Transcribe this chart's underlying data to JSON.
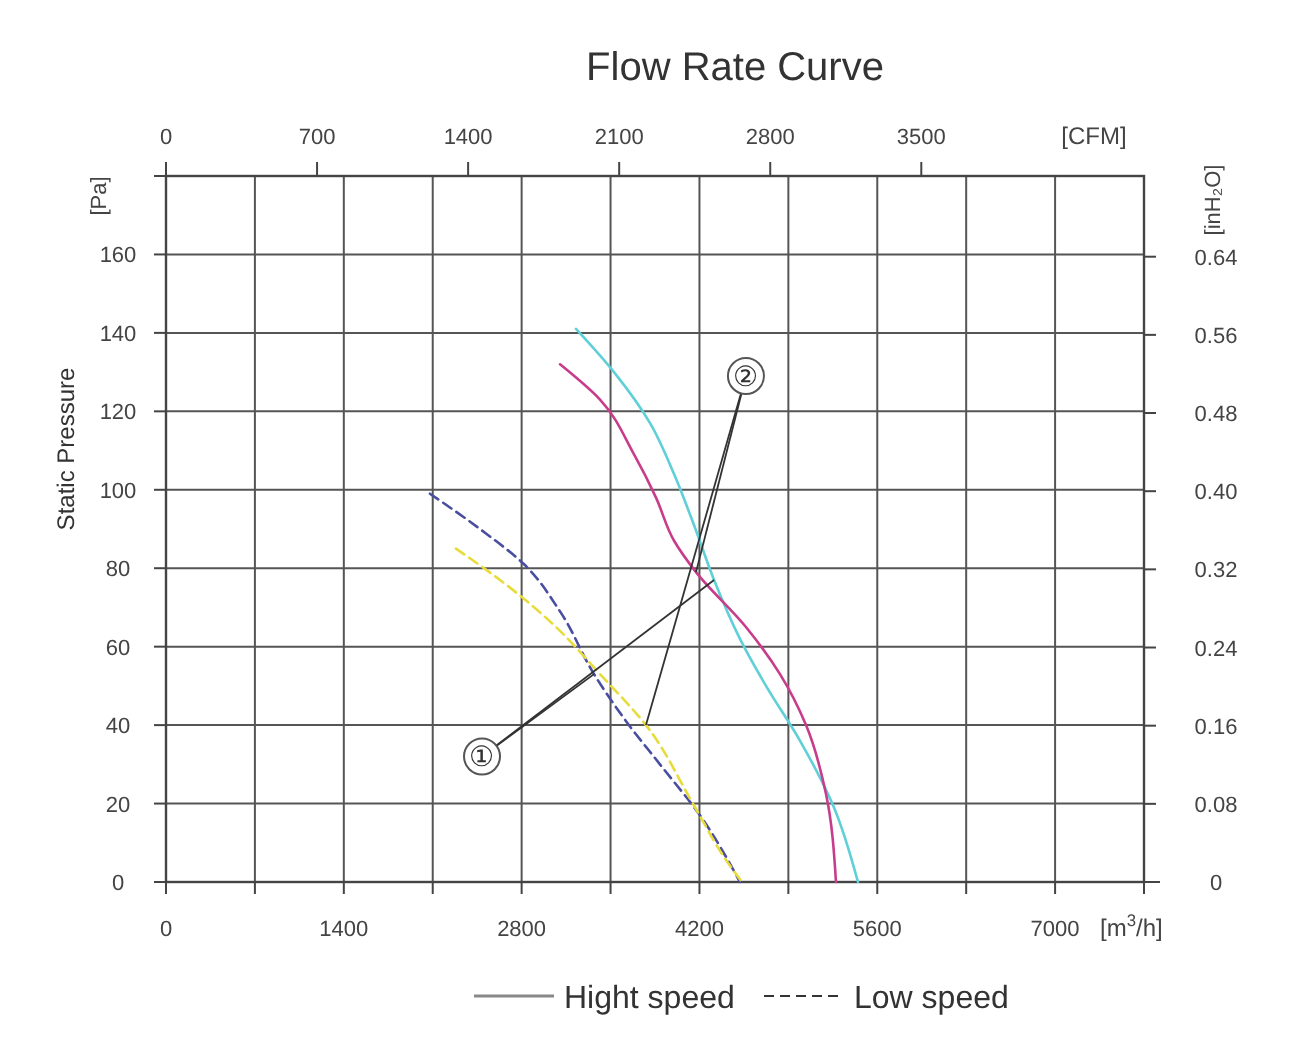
{
  "chart_data": {
    "type": "line",
    "title": "Flow Rate Curve",
    "xlabel": "[m$^{3}$/h]",
    "x2label": "[CFM]",
    "ylabel": "Static Pressure",
    "y2label": "[inH₂O]",
    "xlim": [
      0,
      7700
    ],
    "xticks": [
      0,
      {
        "value": 700,
        "label": null
      },
      1400,
      {
        "value": 2100,
        "label": null
      },
      2800,
      {
        "value": 3500,
        "label": null
      },
      4200,
      {
        "value": 4900,
        "label": null
      },
      5600,
      {
        "value": 6300,
        "label": null
      },
      7000,
      {
        "value": 7700,
        "label": null
      }
    ],
    "x2lim": [
      0,
      4532
    ],
    "x2ticks": [
      0,
      700,
      1400,
      2100,
      2800,
      3500
    ],
    "ylim": [
      0,
      180
    ],
    "yticks": [
      0,
      20,
      40,
      60,
      80,
      100,
      120,
      140,
      160,
      {
        "value": 180,
        "label": null
      }
    ],
    "y2lim": [
      0,
      0.7226
    ],
    "y2ticks": [
      0,
      0.08,
      0.16,
      0.24,
      0.32,
      {
        "value": 0.4,
        "label": "0.40"
      },
      0.48,
      0.56,
      0.64
    ],
    "grid": true,
    "marker": "none",
    "series": [
      {
        "color": "#5fcfd8",
        "line_style": "solid",
        "x": [
          3228,
          3527,
          3811,
          4000,
          4157,
          4315,
          4519,
          4724,
          4992,
          5259,
          5448
        ],
        "values": [
          141,
          130,
          117,
          104,
          91,
          77,
          62,
          50,
          36,
          19,
          0
        ]
      },
      {
        "color": "#c83c8c",
        "line_style": "solid",
        "x": [
          3102,
          3417,
          3685,
          3858,
          4000,
          4173,
          4566,
          4834,
          5039,
          5196,
          5275
        ],
        "values": [
          132,
          123,
          109,
          98,
          87,
          79,
          65,
          53,
          40,
          22.5,
          0
        ]
      },
      {
        "color": "#4a4ea0",
        "line_style": "dashed",
        "x": [
          2078,
          2472,
          2819,
          3102,
          3370,
          3622,
          3889,
          4204,
          4519
        ],
        "values": [
          99,
          90,
          81,
          69,
          53,
          41,
          30,
          17,
          0
        ]
      },
      {
        "color": "#e6dc3c",
        "line_style": "dashed",
        "x": [
          2283,
          2630,
          3055,
          3417,
          3779,
          4157,
          4409,
          4535
        ],
        "values": [
          85,
          77,
          65.5,
          53,
          40,
          19.5,
          5.6,
          0
        ]
      }
    ],
    "annotations": [
      "[Pa]",
      "Hight speed",
      "Low speed",
      {
        "text": "①",
        "x": 2488,
        "y": 32
      },
      {
        "text": "②",
        "x": 4566,
        "y": 129
      }
    ]
  }
}
